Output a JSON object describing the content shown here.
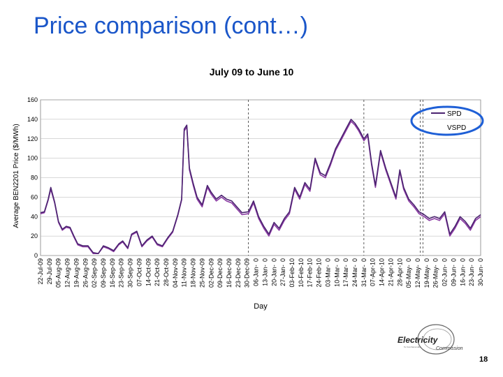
{
  "slide": {
    "title": "Price comparison (cont…)",
    "page_number": "18",
    "logo_text": "Electricity",
    "logo_sub": "Commission",
    "logo_tagline": "Te Komihana Hiko"
  },
  "colors": {
    "title": "#1a56c9",
    "spd_line": "#4b2370",
    "vspd_line": "#8a3aa3",
    "highlight": "#1e5fd6",
    "grid": "#b0b0b0"
  },
  "chart_data": {
    "type": "line",
    "title": "July 09 to June 10",
    "xlabel": "Day",
    "ylabel": "Average BEN2201 Price ($/MWh)",
    "ylim": [
      0,
      160
    ],
    "yticks": [
      0,
      20,
      40,
      60,
      80,
      100,
      120,
      140,
      160
    ],
    "x_dates": [
      "2009-07-22",
      "2010-06-30"
    ],
    "categories": [
      "22-Jul-09",
      "29-Jul-09",
      "05-Aug-09",
      "12-Aug-09",
      "19-Aug-09",
      "26-Aug-09",
      "02-Sep-09",
      "09-Sep-09",
      "16-Sep-09",
      "23-Sep-09",
      "30-Sep-09",
      "07-Oct-09",
      "14-Oct-09",
      "21-Oct-09",
      "28-Oct-09",
      "04-Nov-09",
      "11-Nov-09",
      "18-Nov-09",
      "25-Nov-09",
      "02-Dec-09",
      "09-Dec-09",
      "16-Dec-09",
      "23-Dec-09",
      "30-Dec-09",
      "06-Jan-10",
      "13-Jan-10",
      "20-Jan-10",
      "27-Jan-10",
      "03-Feb-10",
      "10-Feb-10",
      "17-Feb-10",
      "24-Feb-10",
      "03-Mar-10",
      "10-Mar-10",
      "17-Mar-10",
      "24-Mar-10",
      "31-Mar-10",
      "07-Apr-10",
      "14-Apr-10",
      "21-Apr-10",
      "28-Apr-10",
      "05-May-10",
      "12-May-10",
      "19-May-10",
      "26-May-10",
      "02-Jun-10",
      "09-Jun-10",
      "16-Jun-10",
      "23-Jun-10",
      "30-Jun-10"
    ],
    "tick_labels": [
      "22-Jul-09",
      "29-Jul-09",
      "05-Aug-09",
      "12-Aug-09",
      "19-Aug-09",
      "26-Aug-09",
      "02-Sep-09",
      "09-Sep-09",
      "16-Sep-09",
      "23-Sep-09",
      "30-Sep-09",
      "07-Oct-09",
      "14-Oct-09",
      "21-Oct-09",
      "28-Oct-09",
      "04-Nov-09",
      "11-Nov-09",
      "18-Nov-09",
      "25-Nov-09",
      "02-Dec-09",
      "09-Dec-09",
      "16-Dec-09",
      "23-Dec-09",
      "30-Dec-09",
      "06-Jan-  0",
      "13-Jan-  0",
      "20-Jan-  0",
      "27-Jan-  0",
      "03-Feb-10",
      "10-Feb-10",
      "17-Feb-10",
      "24-Feb-10",
      "03-Mar-  0",
      "10-Mar-  0",
      "17-Mar-  0",
      "24-Mar-  0",
      "31-Mar-  0",
      "07-Apr-10",
      "14-Apr-10",
      "21-Apr-10",
      "28-Apr-10",
      "05-May-  0",
      "12-May-  0",
      "19-May-  0",
      "26-May-  0",
      "02-Jun-  0",
      "09-Jun-  0",
      "16-Jun-  0",
      "23-Jun-  0",
      "30-Jun-  0"
    ],
    "vertical_markers": [
      "2009-12-31",
      "2010-03-31",
      "2010-05-14",
      "2010-05-16"
    ],
    "legend": {
      "position": "top-right",
      "highlighted": true
    },
    "series": [
      {
        "name": "SPD",
        "x": [
          "2009-07-22",
          "2009-07-25",
          "2009-07-28",
          "2009-07-30",
          "2009-08-02",
          "2009-08-05",
          "2009-08-08",
          "2009-08-11",
          "2009-08-14",
          "2009-08-17",
          "2009-08-20",
          "2009-08-24",
          "2009-08-28",
          "2009-09-01",
          "2009-09-05",
          "2009-09-09",
          "2009-09-13",
          "2009-09-17",
          "2009-09-21",
          "2009-09-24",
          "2009-09-28",
          "2009-10-01",
          "2009-10-05",
          "2009-10-09",
          "2009-10-13",
          "2009-10-17",
          "2009-10-21",
          "2009-10-25",
          "2009-10-29",
          "2009-11-02",
          "2009-11-06",
          "2009-11-09",
          "2009-11-11",
          "2009-11-13",
          "2009-11-15",
          "2009-11-18",
          "2009-11-21",
          "2009-11-25",
          "2009-11-29",
          "2009-12-02",
          "2009-12-06",
          "2009-12-10",
          "2009-12-14",
          "2009-12-18",
          "2009-12-22",
          "2009-12-26",
          "2009-12-31",
          "2010-01-04",
          "2010-01-08",
          "2010-01-12",
          "2010-01-16",
          "2010-01-20",
          "2010-01-24",
          "2010-01-28",
          "2010-02-01",
          "2010-02-05",
          "2010-02-09",
          "2010-02-13",
          "2010-02-17",
          "2010-02-21",
          "2010-02-25",
          "2010-03-01",
          "2010-03-05",
          "2010-03-09",
          "2010-03-13",
          "2010-03-17",
          "2010-03-21",
          "2010-03-24",
          "2010-03-27",
          "2010-03-31",
          "2010-04-03",
          "2010-04-06",
          "2010-04-09",
          "2010-04-13",
          "2010-04-17",
          "2010-04-21",
          "2010-04-25",
          "2010-04-28",
          "2010-05-01",
          "2010-05-05",
          "2010-05-09",
          "2010-05-13",
          "2010-05-17",
          "2010-05-21",
          "2010-05-25",
          "2010-05-29",
          "2010-06-02",
          "2010-06-06",
          "2010-06-10",
          "2010-06-14",
          "2010-06-18",
          "2010-06-22",
          "2010-06-26",
          "2010-06-30"
        ],
        "values": [
          44,
          45,
          58,
          70,
          55,
          35,
          27,
          30,
          29,
          20,
          12,
          10,
          10,
          3,
          2,
          10,
          8,
          5,
          12,
          15,
          8,
          22,
          25,
          10,
          16,
          20,
          12,
          10,
          18,
          25,
          42,
          58,
          130,
          134,
          90,
          74,
          60,
          52,
          72,
          65,
          58,
          62,
          58,
          56,
          50,
          44,
          45,
          56,
          40,
          30,
          22,
          34,
          28,
          38,
          45,
          70,
          60,
          75,
          68,
          100,
          85,
          82,
          95,
          110,
          120,
          130,
          140,
          136,
          130,
          120,
          125,
          95,
          72,
          108,
          90,
          75,
          60,
          88,
          70,
          58,
          52,
          45,
          42,
          38,
          40,
          38,
          45,
          22,
          30,
          40,
          35,
          28,
          38,
          42
        ]
      },
      {
        "name": "VSPD",
        "x": [
          "2009-07-22",
          "2009-07-25",
          "2009-07-28",
          "2009-07-30",
          "2009-08-02",
          "2009-08-05",
          "2009-08-08",
          "2009-08-11",
          "2009-08-14",
          "2009-08-17",
          "2009-08-20",
          "2009-08-24",
          "2009-08-28",
          "2009-09-01",
          "2009-09-05",
          "2009-09-09",
          "2009-09-13",
          "2009-09-17",
          "2009-09-21",
          "2009-09-24",
          "2009-09-28",
          "2009-10-01",
          "2009-10-05",
          "2009-10-09",
          "2009-10-13",
          "2009-10-17",
          "2009-10-21",
          "2009-10-25",
          "2009-10-29",
          "2009-11-02",
          "2009-11-06",
          "2009-11-09",
          "2009-11-11",
          "2009-11-13",
          "2009-11-15",
          "2009-11-18",
          "2009-11-21",
          "2009-11-25",
          "2009-11-29",
          "2009-12-02",
          "2009-12-06",
          "2009-12-10",
          "2009-12-14",
          "2009-12-18",
          "2009-12-22",
          "2009-12-26",
          "2009-12-31",
          "2010-01-04",
          "2010-01-08",
          "2010-01-12",
          "2010-01-16",
          "2010-01-20",
          "2010-01-24",
          "2010-01-28",
          "2010-02-01",
          "2010-02-05",
          "2010-02-09",
          "2010-02-13",
          "2010-02-17",
          "2010-02-21",
          "2010-02-25",
          "2010-03-01",
          "2010-03-05",
          "2010-03-09",
          "2010-03-13",
          "2010-03-17",
          "2010-03-21",
          "2010-03-24",
          "2010-03-27",
          "2010-03-31",
          "2010-04-03",
          "2010-04-06",
          "2010-04-09",
          "2010-04-13",
          "2010-04-17",
          "2010-04-21",
          "2010-04-25",
          "2010-04-28",
          "2010-05-01",
          "2010-05-05",
          "2010-05-09",
          "2010-05-13",
          "2010-05-17",
          "2010-05-21",
          "2010-05-25",
          "2010-05-29",
          "2010-06-02",
          "2010-06-06",
          "2010-06-10",
          "2010-06-14",
          "2010-06-18",
          "2010-06-22",
          "2010-06-26",
          "2010-06-30"
        ],
        "values": [
          43,
          44,
          57,
          68,
          54,
          34,
          26,
          29,
          28,
          19,
          11,
          9,
          9,
          2,
          2,
          9,
          7,
          4,
          11,
          14,
          7,
          21,
          24,
          9,
          15,
          19,
          11,
          9,
          17,
          24,
          41,
          57,
          128,
          132,
          88,
          72,
          58,
          50,
          70,
          63,
          56,
          60,
          56,
          54,
          48,
          42,
          43,
          54,
          38,
          28,
          20,
          32,
          26,
          36,
          43,
          68,
          58,
          73,
          66,
          98,
          83,
          80,
          93,
          108,
          118,
          128,
          138,
          134,
          128,
          118,
          123,
          93,
          70,
          106,
          88,
          73,
          58,
          86,
          68,
          56,
          50,
          43,
          40,
          36,
          38,
          36,
          43,
          20,
          28,
          38,
          33,
          26,
          36,
          40
        ]
      }
    ]
  }
}
